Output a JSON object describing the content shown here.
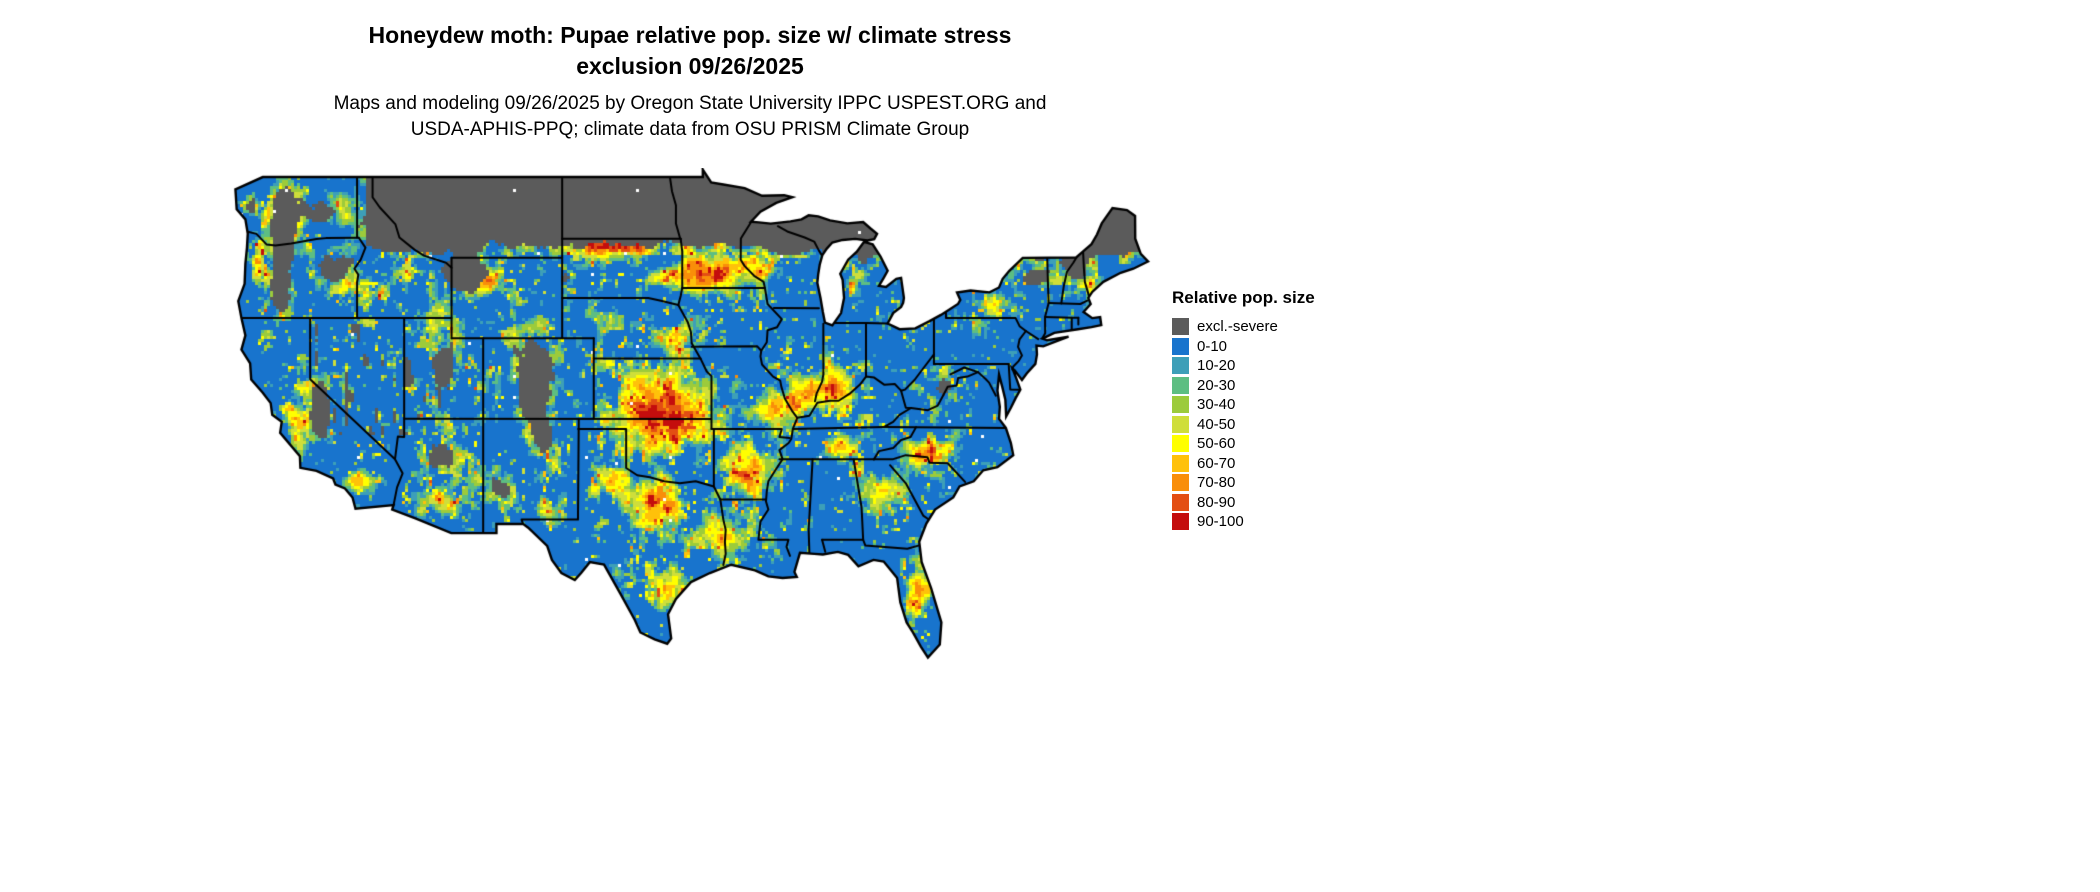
{
  "title": {
    "line1": "Honeydew moth: Pupae relative pop. size w/ climate stress",
    "line2": "exclusion 09/26/2025"
  },
  "subtitle": {
    "line1": "Maps and modeling 09/26/2025 by Oregon State University IPPC USPEST.ORG and",
    "line2": "USDA-APHIS-PPQ; climate data from OSU PRISM Climate Group"
  },
  "legend": {
    "title": "Relative pop. size",
    "entries": [
      {
        "label": "excl.-severe",
        "color": "#5B5B5B"
      },
      {
        "label": "0-10",
        "color": "#1874CD"
      },
      {
        "label": "10-20",
        "color": "#3D9FB8"
      },
      {
        "label": "20-30",
        "color": "#5DBE82"
      },
      {
        "label": "30-40",
        "color": "#9CCB3B"
      },
      {
        "label": "40-50",
        "color": "#CFDE3A"
      },
      {
        "label": "50-60",
        "color": "#FFFF00"
      },
      {
        "label": "60-70",
        "color": "#FFC10A"
      },
      {
        "label": "70-80",
        "color": "#F98E09"
      },
      {
        "label": "80-90",
        "color": "#E34E13"
      },
      {
        "label": "90-100",
        "color": "#C40D0D"
      }
    ]
  },
  "chart_data": {
    "type": "heatmap",
    "title": "Honeydew moth: Pupae relative pop. size w/ climate stress exclusion 09/26/2025",
    "region": "Continental United States",
    "legend_title": "Relative pop. size",
    "categories": [
      "excl.-severe",
      "0-10",
      "10-20",
      "20-30",
      "30-40",
      "40-50",
      "50-60",
      "60-70",
      "70-80",
      "80-90",
      "90-100"
    ],
    "colors": [
      "#5B5B5B",
      "#1874CD",
      "#3D9FB8",
      "#5DBE82",
      "#9CCB3B",
      "#CFDE3A",
      "#FFFF00",
      "#FFC10A",
      "#F98E09",
      "#E34E13",
      "#C40D0D"
    ]
  }
}
